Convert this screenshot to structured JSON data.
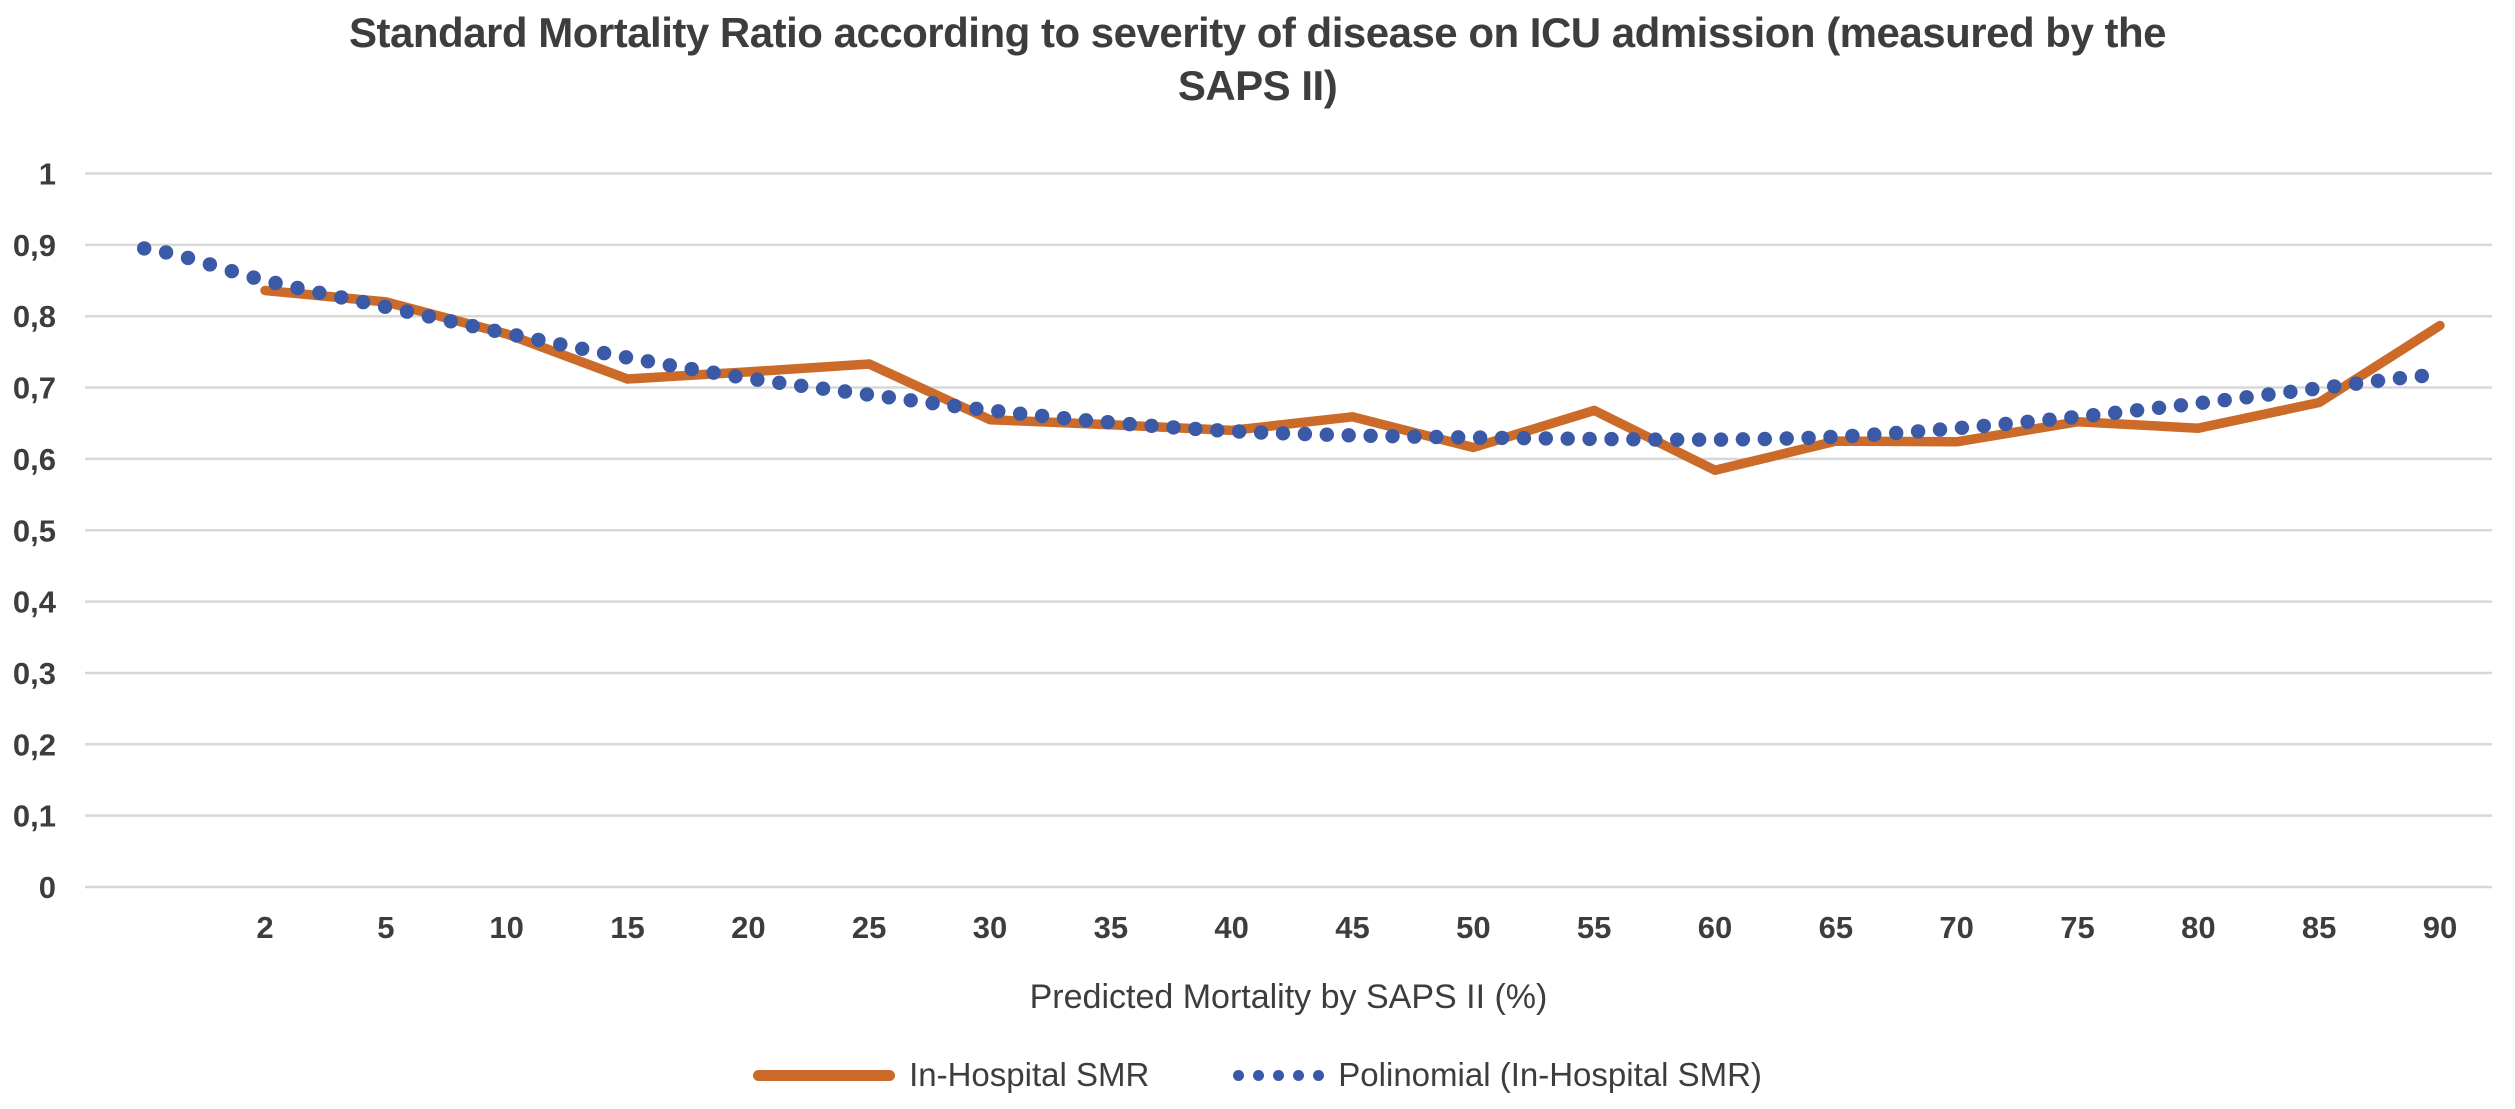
{
  "chart_data": {
    "type": "line",
    "title": "Standard Mortality Ratio according to severity of disease on ICU admission (measured by the SAPS II)",
    "title_lines": [
      "Standard Mortality Ratio according to severity of disease on ICU admission (measured by the",
      "SAPS II)"
    ],
    "xlabel": "Predicted Mortality by SAPS II (%)",
    "ylabel": "",
    "categories": [
      2,
      5,
      10,
      15,
      20,
      25,
      30,
      35,
      40,
      45,
      50,
      55,
      60,
      65,
      70,
      75,
      80,
      85,
      90
    ],
    "x_tick_labels": [
      "2",
      "5",
      "10",
      "15",
      "20",
      "25",
      "30",
      "35",
      "40",
      "45",
      "50",
      "55",
      "60",
      "65",
      "70",
      "75",
      "80",
      "85",
      "90"
    ],
    "y_tick_labels": [
      "1",
      "0,9",
      "0,8",
      "0,7",
      "0,6",
      "0,5",
      "0,4",
      "0,3",
      "0,2",
      "0,1",
      "0"
    ],
    "y_ticks": [
      1,
      0.9,
      0.8,
      0.7,
      0.6,
      0.5,
      0.4,
      0.3,
      0.2,
      0.1,
      0
    ],
    "ylim": [
      0,
      1
    ],
    "grid": true,
    "decimal_separator": ",",
    "series": [
      {
        "name": "In-Hospital SMR",
        "style": "solid-line",
        "color": "#cc6b29",
        "values": [
          0.836,
          0.82,
          0.775,
          0.712,
          0.722,
          0.733,
          0.655,
          0.648,
          0.64,
          0.659,
          0.616,
          0.668,
          0.584,
          0.625,
          0.624,
          0.652,
          0.643,
          0.679,
          0.787
        ]
      },
      {
        "name": "Polinomial (In-Hospital SMR)",
        "style": "dotted-trendline",
        "color": "#3a59a6",
        "values": [
          0.85,
          0.813,
          0.776,
          0.742,
          0.713,
          0.69,
          0.668,
          0.651,
          0.639,
          0.633,
          0.63,
          0.628,
          0.627,
          0.631,
          0.643,
          0.659,
          0.678,
          0.699,
          0.718
        ],
        "pre_point_value": 0.895,
        "note": "trendline starts one category slot before first x label and ends at 90"
      }
    ],
    "legend": {
      "position": "bottom",
      "entries": [
        "In-Hospital SMR",
        "Polinomial (In-Hospital SMR)"
      ]
    },
    "colors": {
      "gridline": "#d8d8d8",
      "text": "#3d3d3d"
    }
  }
}
